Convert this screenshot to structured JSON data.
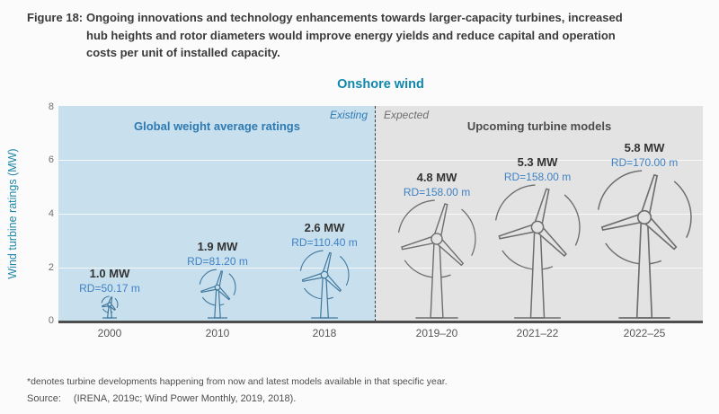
{
  "figure": {
    "label": "Figure 18:",
    "caption_lines": [
      "Ongoing innovations and technology enhancements towards larger-capacity turbines, increased",
      "hub heights and rotor diameters would improve energy yields and reduce capital and operation",
      "costs per unit of installed capacity."
    ]
  },
  "chart": {
    "title": "Onshore wind",
    "y_axis_label": "Wind turbine ratings (MW)",
    "y_ticks": [
      "8",
      "6",
      "4",
      "2",
      "0"
    ],
    "left_region": {
      "tag": "Existing",
      "title": "Global weight average ratings"
    },
    "right_region": {
      "tag": "Expected",
      "title": "Upcoming turbine models"
    },
    "turbines": [
      {
        "year": "2000",
        "mw": "1.0 MW",
        "rd": "RD=50.17 m",
        "region": "existing"
      },
      {
        "year": "2010",
        "mw": "1.9 MW",
        "rd": "RD=81.20 m",
        "region": "existing"
      },
      {
        "year": "2018",
        "mw": "2.6 MW",
        "rd": "RD=110.40 m",
        "region": "existing"
      },
      {
        "year": "2019–20",
        "mw": "4.8 MW",
        "rd": "RD=158.00 m",
        "region": "expected"
      },
      {
        "year": "2021–22",
        "mw": "5.3 MW",
        "rd": "RD=158.00 m",
        "region": "expected"
      },
      {
        "year": "2022–25",
        "mw": "5.8 MW",
        "rd": "RD=170.00 m",
        "region": "expected"
      }
    ]
  },
  "footnote": "*denotes turbine developments happening from now and latest models available in that specific year.",
  "source_label": "Source:",
  "source_text": "(IRENA, 2019c; Wind Power Monthly, 2019, 2018).",
  "colors": {
    "title_teal": "#0f86ac",
    "axis_teal": "#1e87a9",
    "panel_blue": "#c8dfee",
    "panel_gray": "#e3e3e3",
    "region_blue_text": "#2e7ab2",
    "region_gray_text": "#4c4c4c",
    "rd_blue": "#3e82c4",
    "mw_dark": "#333333",
    "turbine_blue": "#40789d",
    "turbine_gray": "#6e6e6e",
    "axis_line": "#4d4d4d"
  },
  "chart_data": {
    "type": "bar",
    "variant": "pictorial-turbine-illustration",
    "title": "Onshore wind",
    "xlabel": "",
    "ylabel": "Wind turbine ratings (MW)",
    "ylim": [
      0,
      8
    ],
    "yticks": [
      0,
      2,
      4,
      6,
      8
    ],
    "grid": true,
    "categories": [
      "2000",
      "2010",
      "2018",
      "2019–20",
      "2021–22",
      "2022–25"
    ],
    "series": [
      {
        "name": "Wind turbine rating (MW)",
        "values": [
          1.0,
          1.9,
          2.6,
          4.8,
          5.3,
          5.8
        ]
      },
      {
        "name": "Rotor diameter RD (m)",
        "values": [
          50.17,
          81.2,
          110.4,
          158.0,
          158.0,
          170.0
        ]
      }
    ],
    "regions": [
      {
        "tag": "Existing",
        "title": "Global weight average ratings",
        "categories": [
          "2000",
          "2010",
          "2018"
        ]
      },
      {
        "tag": "Expected",
        "title": "Upcoming turbine models",
        "categories": [
          "2019–20",
          "2021–22",
          "2022–25"
        ]
      }
    ]
  }
}
